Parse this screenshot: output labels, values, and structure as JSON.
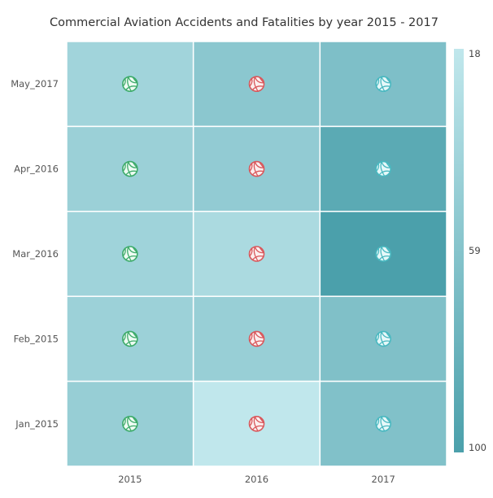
{
  "chart_data": {
    "type": "heatmap",
    "title": "Commercial Aviation Accidents and Fatalities by year 2015 - 2017",
    "xlabel": "",
    "ylabel": "",
    "x_categories": [
      "2015",
      "2016",
      "2017"
    ],
    "y_categories": [
      "May_2017",
      "Apr_2016",
      "Mar_2016",
      "Feb_2015",
      "Jan_2015"
    ],
    "values": [
      [
        40,
        55,
        64
      ],
      [
        44,
        50,
        89
      ],
      [
        41,
        33,
        100
      ],
      [
        43,
        46,
        63
      ],
      [
        47,
        18,
        62
      ]
    ],
    "color_scale": {
      "min": 18,
      "mid": 59,
      "max": 100,
      "min_color": "#c0e7ec",
      "max_color": "#4ba0ab",
      "tick_labels": [
        "18",
        "59",
        "100"
      ]
    },
    "column_markers": [
      {
        "column": "2015",
        "icon": "volleyball-icon",
        "color": "#3dab6a",
        "fill": "#eefbf3"
      },
      {
        "column": "2016",
        "icon": "volleyball-icon",
        "color": "#d9575b",
        "fill": "#fbeeee"
      },
      {
        "column": "2017",
        "icon": "volleyball-icon",
        "color": "#49b8c0",
        "fill": "#e6f8f9"
      }
    ],
    "legend_position": "right",
    "grid": true
  }
}
